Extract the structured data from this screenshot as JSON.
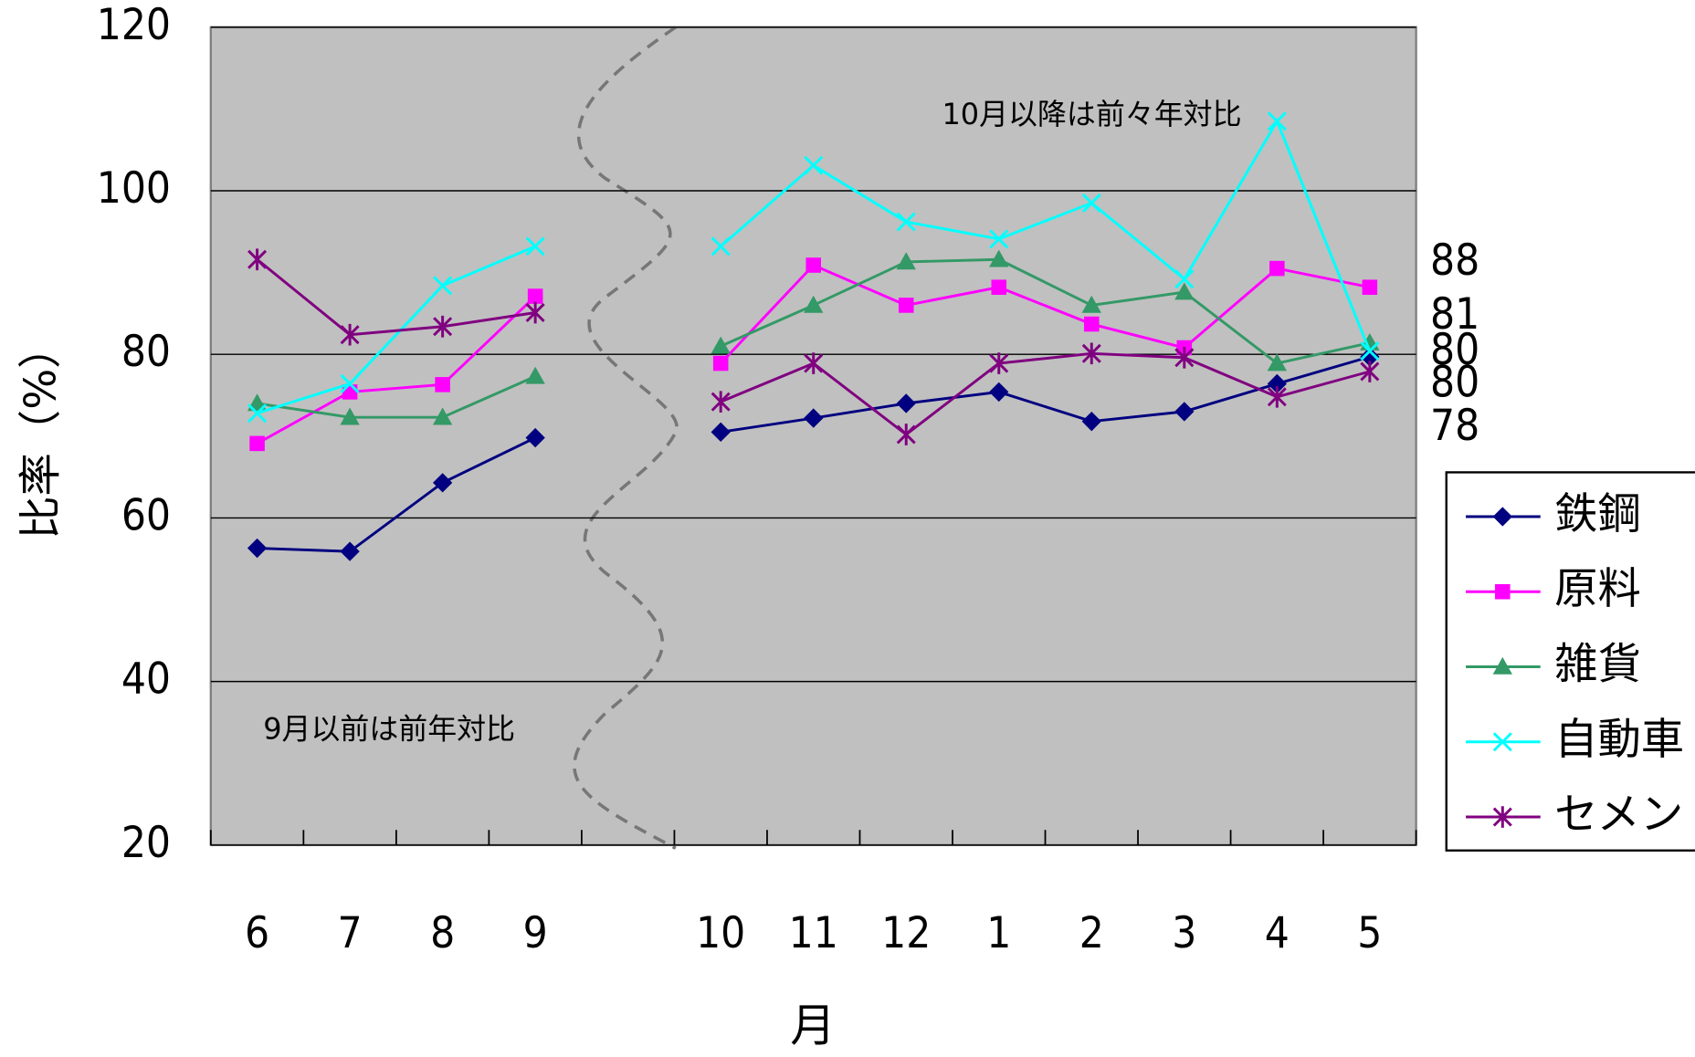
{
  "chart_data": {
    "type": "line",
    "x_label": "月",
    "y_label": "比率（%）",
    "annotations": [
      "10月以降は前々年対比",
      "9月以前は前年対比"
    ],
    "annotation_color": "#0000ff",
    "categories": [
      "6",
      "7",
      "8",
      "9",
      null,
      "10",
      "11",
      "12",
      "1",
      "2",
      "3",
      "4",
      "5"
    ],
    "ylim": [
      20,
      120
    ],
    "yticks": [
      20,
      40,
      60,
      80,
      100,
      120
    ],
    "grid": true,
    "legend": "right",
    "series": [
      {
        "name": "鉄鋼",
        "color": "#000080",
        "marker": "diamond",
        "values": [
          56.3,
          55.9,
          64.3,
          69.8,
          null,
          70.5,
          72.2,
          74.0,
          75.4,
          71.8,
          73.0,
          76.4,
          79.7
        ],
        "value_labels": [
          null,
          null,
          null,
          null,
          null,
          null,
          null,
          null,
          null,
          null,
          null,
          null,
          "80"
        ]
      },
      {
        "name": "原料",
        "color": "#ff00ff",
        "marker": "square",
        "values": [
          69.1,
          75.4,
          76.3,
          87.1,
          null,
          78.9,
          90.9,
          86.0,
          88.2,
          83.7,
          80.8,
          90.5,
          88.2
        ],
        "value_labels": [
          null,
          null,
          null,
          null,
          null,
          null,
          null,
          null,
          null,
          null,
          null,
          null,
          "88"
        ]
      },
      {
        "name": "雑貨",
        "color": "#339966",
        "marker": "triangle",
        "values": [
          74.0,
          72.3,
          72.3,
          77.3,
          null,
          81.0,
          86.0,
          91.3,
          91.6,
          86.0,
          87.6,
          78.9,
          81.4
        ],
        "value_labels": [
          null,
          null,
          null,
          null,
          null,
          null,
          null,
          null,
          null,
          null,
          null,
          null,
          "81"
        ]
      },
      {
        "name": "自動車",
        "color": "#00ffff",
        "marker": "x",
        "values": [
          72.8,
          76.4,
          88.4,
          93.2,
          null,
          93.2,
          103.1,
          96.2,
          94.1,
          98.5,
          89.2,
          108.5,
          80.4
        ],
        "value_labels": [
          null,
          null,
          null,
          null,
          null,
          null,
          null,
          null,
          null,
          null,
          null,
          null,
          "80"
        ]
      },
      {
        "name": "セメント",
        "color": "#800080",
        "marker": "asterisk",
        "values": [
          91.6,
          82.4,
          83.4,
          85.1,
          null,
          74.2,
          78.9,
          70.2,
          78.9,
          80.1,
          79.6,
          74.8,
          77.9
        ],
        "value_labels": [
          null,
          null,
          null,
          null,
          null,
          null,
          null,
          null,
          null,
          null,
          null,
          null,
          "78"
        ]
      }
    ]
  }
}
